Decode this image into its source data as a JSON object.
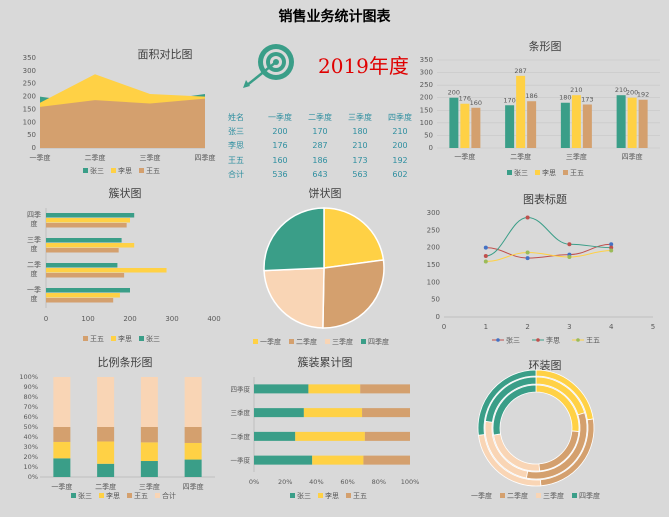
{
  "title": "销售业务统计图表",
  "year_label": "2019年度",
  "colors": {
    "zhang": "#3a9e88",
    "li": "#ffd145",
    "wang": "#d4a06e",
    "total": "#f9d5b5"
  },
  "table": {
    "header": [
      "姓名",
      "一季度",
      "二季度",
      "三季度",
      "四季度"
    ],
    "rows": [
      [
        "张三",
        "200",
        "170",
        "180",
        "210"
      ],
      [
        "李思",
        "176",
        "287",
        "210",
        "200"
      ],
      [
        "王五",
        "160",
        "186",
        "173",
        "192"
      ],
      [
        "合计",
        "536",
        "643",
        "563",
        "602"
      ]
    ]
  },
  "chart_data": [
    {
      "id": "area",
      "type": "area",
      "title": "面积对比图",
      "categories": [
        "一季度",
        "二季度",
        "三季度",
        "四季度"
      ],
      "series": [
        {
          "name": "张三",
          "values": [
            200,
            170,
            180,
            210
          ]
        },
        {
          "name": "李思",
          "values": [
            176,
            287,
            210,
            200
          ]
        },
        {
          "name": "王五",
          "values": [
            160,
            186,
            173,
            192
          ]
        }
      ],
      "ylim": [
        0,
        350
      ],
      "yticks": [
        "0",
        "50",
        "100",
        "150",
        "200",
        "250",
        "300",
        "350"
      ]
    },
    {
      "id": "column",
      "type": "bar",
      "title": "条形图",
      "categories": [
        "一季度",
        "二季度",
        "三季度",
        "四季度"
      ],
      "series": [
        {
          "name": "张三",
          "values": [
            200,
            170,
            180,
            210
          ]
        },
        {
          "name": "李思",
          "values": [
            176,
            287,
            210,
            200
          ]
        },
        {
          "name": "王五",
          "values": [
            160,
            186,
            173,
            192
          ]
        }
      ],
      "ylim": [
        0,
        350
      ],
      "yticks": [
        "0",
        "50",
        "100",
        "150",
        "200",
        "250",
        "300",
        "350"
      ]
    },
    {
      "id": "hbar",
      "type": "bar",
      "title": "簇状图",
      "categories": [
        "一季度",
        "二季度",
        "三季度",
        "四季度"
      ],
      "series": [
        {
          "name": "王五",
          "values": [
            160,
            186,
            173,
            192
          ]
        },
        {
          "name": "李思",
          "values": [
            176,
            287,
            210,
            200
          ]
        },
        {
          "name": "张三",
          "values": [
            200,
            170,
            180,
            210
          ]
        }
      ],
      "xlim": [
        0,
        400
      ],
      "xticks": [
        "0",
        "100",
        "200",
        "300",
        "400"
      ]
    },
    {
      "id": "pie",
      "type": "pie",
      "title": "饼状图",
      "categories": [
        "一季度",
        "二季度",
        "三季度",
        "四季度"
      ],
      "values": [
        536,
        643,
        563,
        602
      ]
    },
    {
      "id": "line",
      "type": "line",
      "title": "图表标题",
      "x": [
        1,
        2,
        3,
        4
      ],
      "series": [
        {
          "name": "张三",
          "values": [
            200,
            170,
            180,
            210
          ]
        },
        {
          "name": "李思",
          "values": [
            176,
            287,
            210,
            200
          ]
        },
        {
          "name": "王五",
          "values": [
            160,
            186,
            173,
            192
          ]
        }
      ],
      "xlim": [
        0,
        5
      ],
      "ylim": [
        0,
        300
      ],
      "xticks": [
        "0",
        "1",
        "2",
        "3",
        "4",
        "5"
      ],
      "yticks": [
        "0",
        "50",
        "100",
        "150",
        "200",
        "250",
        "300"
      ]
    },
    {
      "id": "stack100",
      "type": "bar",
      "title": "比例条形图",
      "categories": [
        "一季度",
        "二季度",
        "三季度",
        "四季度"
      ],
      "series": [
        {
          "name": "张三",
          "values": [
            200,
            170,
            180,
            210
          ]
        },
        {
          "name": "李思",
          "values": [
            176,
            287,
            210,
            200
          ]
        },
        {
          "name": "王五",
          "values": [
            160,
            186,
            173,
            192
          ]
        },
        {
          "name": "合计",
          "values": [
            536,
            643,
            563,
            602
          ]
        }
      ],
      "yticks": [
        "0%",
        "10%",
        "20%",
        "30%",
        "40%",
        "50%",
        "60%",
        "70%",
        "80%",
        "90%",
        "100%"
      ]
    },
    {
      "id": "hstack",
      "type": "bar",
      "title": "簇装累计图",
      "categories": [
        "一季度",
        "二季度",
        "三季度",
        "四季度"
      ],
      "series": [
        {
          "name": "张三",
          "values": [
            200,
            170,
            180,
            210
          ]
        },
        {
          "name": "李思",
          "values": [
            176,
            287,
            210,
            200
          ]
        },
        {
          "name": "王五",
          "values": [
            160,
            186,
            173,
            192
          ]
        }
      ],
      "xticks": [
        "0%",
        "20%",
        "40%",
        "60%",
        "80%",
        "100%"
      ]
    },
    {
      "id": "donut",
      "type": "pie",
      "title": "环装图",
      "categories": [
        "一季度",
        "二季度",
        "三季度",
        "四季度"
      ],
      "series": [
        {
          "name": "张三",
          "values": [
            200,
            170,
            180,
            210
          ]
        },
        {
          "name": "李思",
          "values": [
            176,
            287,
            210,
            200
          ]
        },
        {
          "name": "王五",
          "values": [
            160,
            186,
            173,
            192
          ]
        }
      ]
    }
  ]
}
